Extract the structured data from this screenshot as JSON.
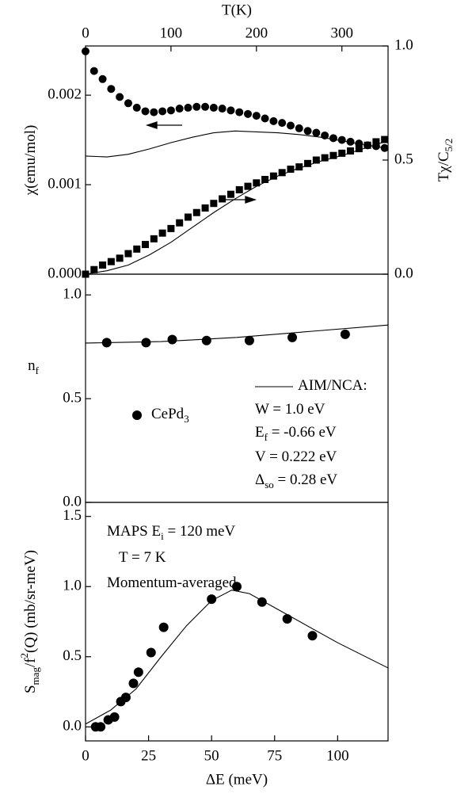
{
  "chart_data": [
    {
      "type": "line",
      "x_label": "T(K)",
      "y_label": {
        "parts": [
          {
            "text": "χ(emu/mol)"
          }
        ]
      },
      "y2_label": {
        "parts": [
          {
            "text": "Tχ/C"
          },
          {
            "sub": "5/2"
          }
        ]
      },
      "xlim": [
        0,
        354
      ],
      "xticks": [
        0,
        100,
        200,
        300
      ],
      "ylim": [
        0,
        0.00255
      ],
      "yticks": [
        {
          "value": 0,
          "label": "0.000"
        },
        0.001,
        0.002
      ],
      "y2lim": [
        0,
        1.0
      ],
      "y2ticks": [
        {
          "value": 0,
          "label": "0.0"
        },
        0.5,
        {
          "value": 1,
          "label": "1.0"
        }
      ],
      "series": [
        {
          "marker": "circle",
          "color": "#000",
          "x": [
            0,
            10,
            20,
            30,
            40,
            50,
            60,
            70,
            80,
            90,
            100,
            110,
            120,
            130,
            140,
            150,
            160,
            170,
            180,
            190,
            200,
            210,
            220,
            230,
            240,
            250,
            260,
            270,
            280,
            290,
            300,
            310,
            320,
            330,
            340,
            350
          ],
          "values": [
            0.00249,
            0.00227,
            0.00218,
            0.00207,
            0.00198,
            0.00191,
            0.00186,
            0.00182,
            0.00181,
            0.00182,
            0.00183,
            0.00185,
            0.00186,
            0.00187,
            0.00187,
            0.00186,
            0.00185,
            0.00183,
            0.00181,
            0.00179,
            0.00177,
            0.00174,
            0.00171,
            0.00169,
            0.00166,
            0.00163,
            0.0016,
            0.00158,
            0.00155,
            0.00152,
            0.0015,
            0.00148,
            0.00146,
            0.00144,
            0.00143,
            0.00141
          ]
        },
        {
          "marker": "none",
          "color": "#000",
          "x": [
            0,
            25,
            50,
            75,
            100,
            125,
            150,
            175,
            200,
            225,
            250,
            275,
            300,
            325,
            350
          ],
          "values": [
            0.00132,
            0.00131,
            0.00134,
            0.0014,
            0.00147,
            0.00153,
            0.00158,
            0.0016,
            0.00159,
            0.00158,
            0.00156,
            0.00153,
            0.00149,
            0.00145,
            0.00141
          ]
        },
        {
          "marker": "square",
          "color": "#000",
          "axis": "y2",
          "x": [
            0,
            10,
            20,
            30,
            40,
            50,
            60,
            70,
            80,
            90,
            100,
            110,
            120,
            130,
            140,
            150,
            160,
            170,
            180,
            190,
            200,
            210,
            220,
            230,
            240,
            250,
            260,
            270,
            280,
            290,
            300,
            310,
            320,
            330,
            340,
            350
          ],
          "values": [
            0,
            0.02,
            0.04,
            0.055,
            0.07,
            0.09,
            0.11,
            0.13,
            0.155,
            0.18,
            0.2,
            0.225,
            0.25,
            0.27,
            0.29,
            0.31,
            0.33,
            0.35,
            0.37,
            0.385,
            0.4,
            0.415,
            0.43,
            0.445,
            0.46,
            0.47,
            0.485,
            0.5,
            0.51,
            0.52,
            0.53,
            0.54,
            0.55,
            0.565,
            0.58,
            0.59
          ]
        },
        {
          "marker": "none",
          "color": "#000",
          "axis": "y2",
          "x": [
            0,
            25,
            50,
            75,
            100,
            125,
            150,
            175,
            200,
            225,
            250,
            275,
            300,
            325,
            350
          ],
          "values": [
            0,
            0.015,
            0.04,
            0.085,
            0.14,
            0.205,
            0.27,
            0.33,
            0.385,
            0.43,
            0.465,
            0.495,
            0.52,
            0.55,
            0.58
          ]
        }
      ]
    },
    {
      "type": "line",
      "y_label": {
        "parts": [
          {
            "text": "n"
          },
          {
            "sub": "f"
          }
        ]
      },
      "xlim": [
        0,
        120
      ],
      "ylim": [
        0,
        1.1
      ],
      "yticks": [
        {
          "value": 0,
          "label": "0.0"
        },
        0.5,
        {
          "value": 1,
          "label": "1.0"
        }
      ],
      "series": [
        {
          "marker": "none",
          "color": "#000",
          "name": {
            "parts": [
              {
                "text": "AIM/NCA:"
              }
            ]
          },
          "x": [
            0,
            30,
            60,
            90,
            120
          ],
          "values": [
            0.768,
            0.775,
            0.795,
            0.825,
            0.855
          ]
        },
        {
          "marker": "circle",
          "color": "#000",
          "name": {
            "parts": [
              {
                "text": "CePd"
              },
              {
                "sub": "3"
              }
            ]
          },
          "x": [
            8.4,
            24,
            34.4,
            48,
            65,
            82,
            103
          ],
          "values": [
            0.77,
            0.77,
            0.785,
            0.78,
            0.78,
            0.795,
            0.81
          ]
        }
      ],
      "annotations": [
        {
          "parts": [
            {
              "text": "W = 1.0 eV"
            }
          ]
        },
        {
          "parts": [
            {
              "text": "E"
            },
            {
              "sub": "f"
            },
            {
              "text": " = -0.66 eV"
            }
          ]
        },
        {
          "parts": [
            {
              "text": "V = 0.222 eV"
            }
          ]
        },
        {
          "parts": [
            {
              "text": "Δ"
            },
            {
              "sub": "so"
            },
            {
              "text": " = 0.28 eV"
            }
          ]
        }
      ]
    },
    {
      "type": "line",
      "x_label": "ΔE (meV)",
      "y_label": {
        "parts": [
          {
            "text": "S"
          },
          {
            "sub": "mag"
          },
          {
            "text": "/f"
          },
          {
            "sup": "2"
          },
          {
            "text": "(Q) (mb/sr-meV)"
          }
        ]
      },
      "xlim": [
        0,
        120
      ],
      "xticks": [
        0,
        25,
        50,
        75,
        100
      ],
      "ylim": [
        -0.1,
        1.6
      ],
      "yticks": [
        {
          "value": 0,
          "label": "0.0"
        },
        0.5,
        {
          "value": 1,
          "label": "1.0"
        },
        1.5
      ],
      "series": [
        {
          "marker": "circle",
          "color": "#000",
          "x": [
            4,
            6,
            9,
            11.5,
            14,
            16,
            19,
            21,
            26,
            31,
            50,
            60,
            70,
            80,
            90
          ],
          "values": [
            0,
            0,
            0.05,
            0.07,
            0.18,
            0.21,
            0.31,
            0.39,
            0.53,
            0.71,
            0.91,
            1.0,
            0.89,
            0.77,
            0.65
          ]
        },
        {
          "marker": "none",
          "color": "#000",
          "x": [
            0,
            10,
            20,
            30,
            40,
            50,
            58,
            65,
            80,
            100,
            120
          ],
          "values": [
            0.02,
            0.12,
            0.27,
            0.5,
            0.72,
            0.9,
            0.975,
            0.95,
            0.8,
            0.6,
            0.42
          ]
        }
      ],
      "annotations": [
        {
          "parts": [
            {
              "text": "MAPS E"
            },
            {
              "sub": "i"
            },
            {
              "text": " = 120 meV"
            }
          ]
        },
        {
          "parts": [
            {
              "text": "T = 7 K"
            }
          ]
        },
        {
          "parts": [
            {
              "text": "Momentum-averaged"
            }
          ]
        }
      ]
    }
  ]
}
